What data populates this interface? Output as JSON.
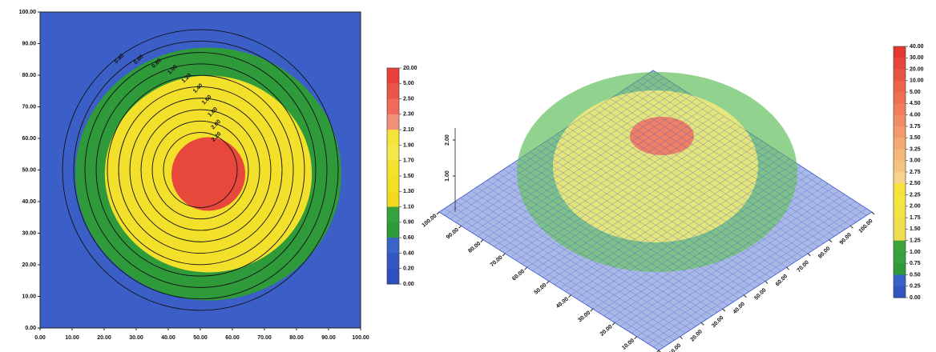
{
  "chart_data": [
    {
      "type": "contour",
      "xlim": [
        0,
        100
      ],
      "ylim": [
        0,
        100
      ],
      "xticks": [
        {
          "value": 0,
          "label": "0.00"
        },
        {
          "value": 10,
          "label": "10.00"
        },
        {
          "value": 20,
          "label": "20.00"
        },
        {
          "value": 30,
          "label": "30.00"
        },
        {
          "value": 40,
          "label": "40.00"
        },
        {
          "value": 50,
          "label": "50.00"
        },
        {
          "value": 60,
          "label": "60.00"
        },
        {
          "value": 70,
          "label": "70.00"
        },
        {
          "value": 80,
          "label": "80.00"
        },
        {
          "value": 90,
          "label": "90.00"
        },
        {
          "value": 100,
          "label": "100.00"
        }
      ],
      "yticks": [
        {
          "value": 0,
          "label": "0.00"
        },
        {
          "value": 10,
          "label": "10.00"
        },
        {
          "value": 20,
          "label": "20.00"
        },
        {
          "value": 30,
          "label": "30.00"
        },
        {
          "value": 40,
          "label": "40.00"
        },
        {
          "value": 50,
          "label": "50.00"
        },
        {
          "value": 60,
          "label": "60.00"
        },
        {
          "value": 70,
          "label": "70.00"
        },
        {
          "value": 80,
          "label": "80.00"
        },
        {
          "value": 90,
          "label": "90.00"
        },
        {
          "value": 100,
          "label": "100.00"
        }
      ],
      "contour_levels": [
        {
          "value": 0.4,
          "label": "0.40"
        },
        {
          "value": 0.6,
          "label": "0.60"
        },
        {
          "value": 0.8,
          "label": "0.80"
        },
        {
          "value": 1.0,
          "label": "1.00"
        },
        {
          "value": 1.2,
          "label": "1.20"
        },
        {
          "value": 1.4,
          "label": "1.40"
        },
        {
          "value": 1.6,
          "label": "1.60"
        },
        {
          "value": 1.8,
          "label": "1.80"
        },
        {
          "value": 2.0,
          "label": "2.00"
        },
        {
          "value": 2.2,
          "label": "2.20"
        }
      ],
      "colorbar": [
        {
          "value": 20,
          "label": "20.00"
        },
        {
          "value": 5,
          "label": "5.00"
        },
        {
          "value": 2.5,
          "label": "2.50"
        },
        {
          "value": 2.3,
          "label": "2.30"
        },
        {
          "value": 2.1,
          "label": "2.10"
        },
        {
          "value": 1.9,
          "label": "1.90"
        },
        {
          "value": 1.7,
          "label": "1.70"
        },
        {
          "value": 1.5,
          "label": "1.50"
        },
        {
          "value": 1.3,
          "label": "1.30"
        },
        {
          "value": 1.1,
          "label": "1.10"
        },
        {
          "value": 0.9,
          "label": "0.90"
        },
        {
          "value": 0.6,
          "label": "0.60"
        },
        {
          "value": 0.4,
          "label": "0.40"
        },
        {
          "value": 0.2,
          "label": "0.20"
        },
        {
          "value": 0,
          "label": "0.00"
        }
      ],
      "colorbar_colors": [
        "#e8403a",
        "#ea5546",
        "#ef6a5a",
        "#f3907c",
        "#f5e33a",
        "#f7e84a",
        "#f5e22e",
        "#f3df25",
        "#f1da1d",
        "#36a23c",
        "#2f9a38",
        "#3a64c8",
        "#3456c2",
        "#2e4fbf"
      ]
    },
    {
      "type": "surface3d",
      "xlim": [
        0,
        100
      ],
      "ylim": [
        0,
        100
      ],
      "xticks": [
        {
          "value": 0,
          "label": "0.00"
        },
        {
          "value": 10,
          "label": "10.00"
        },
        {
          "value": 20,
          "label": "20.00"
        },
        {
          "value": 30,
          "label": "30.00"
        },
        {
          "value": 40,
          "label": "40.00"
        },
        {
          "value": 50,
          "label": "50.00"
        },
        {
          "value": 60,
          "label": "60.00"
        },
        {
          "value": 70,
          "label": "70.00"
        },
        {
          "value": 80,
          "label": "80.00"
        },
        {
          "value": 90,
          "label": "90.00"
        },
        {
          "value": 100,
          "label": "100.00"
        }
      ],
      "yticks": [
        {
          "value": 0,
          "label": "0.00"
        },
        {
          "value": 10,
          "label": "10.00"
        },
        {
          "value": 20,
          "label": "20.00"
        },
        {
          "value": 30,
          "label": "30.00"
        },
        {
          "value": 40,
          "label": "40.00"
        },
        {
          "value": 50,
          "label": "50.00"
        },
        {
          "value": 60,
          "label": "60.00"
        },
        {
          "value": 70,
          "label": "70.00"
        },
        {
          "value": 80,
          "label": "80.00"
        },
        {
          "value": 90,
          "label": "90.00"
        },
        {
          "value": 100,
          "label": "100.00"
        }
      ],
      "zticks": [
        {
          "value": 1,
          "label": "1.00"
        },
        {
          "value": 2,
          "label": "2.00"
        }
      ],
      "colorbar": [
        {
          "value": 40,
          "label": "40.00"
        },
        {
          "value": 30,
          "label": "30.00"
        },
        {
          "value": 20,
          "label": "20.00"
        },
        {
          "value": 10,
          "label": "10.00"
        },
        {
          "value": 5,
          "label": "5.00"
        },
        {
          "value": 4.5,
          "label": "4.50"
        },
        {
          "value": 4,
          "label": "4.00"
        },
        {
          "value": 3.75,
          "label": "3.75"
        },
        {
          "value": 3.5,
          "label": "3.50"
        },
        {
          "value": 3.25,
          "label": "3.25"
        },
        {
          "value": 3,
          "label": "3.00"
        },
        {
          "value": 2.75,
          "label": "2.75"
        },
        {
          "value": 2.5,
          "label": "2.50"
        },
        {
          "value": 2.25,
          "label": "2.25"
        },
        {
          "value": 2,
          "label": "2.00"
        },
        {
          "value": 1.75,
          "label": "1.75"
        },
        {
          "value": 1.5,
          "label": "1.50"
        },
        {
          "value": 1.25,
          "label": "1.25"
        },
        {
          "value": 1,
          "label": "1.00"
        },
        {
          "value": 0.75,
          "label": "0.75"
        },
        {
          "value": 0.5,
          "label": "0.50"
        },
        {
          "value": 0.25,
          "label": "0.25"
        },
        {
          "value": 0,
          "label": "0.00"
        }
      ],
      "colorbar_colors": [
        "#e23a32",
        "#e6463a",
        "#e95442",
        "#ec624a",
        "#ee7052",
        "#f07e5a",
        "#f28c62",
        "#f39a6a",
        "#f4a872",
        "#f5b67a",
        "#f6c482",
        "#f7d28a",
        "#f5e23a",
        "#f5e540",
        "#f3e246",
        "#f1df4c",
        "#efdc52",
        "#3da43c",
        "#37a040",
        "#2f9a3a",
        "#3a62c6",
        "#3355c0"
      ]
    }
  ]
}
